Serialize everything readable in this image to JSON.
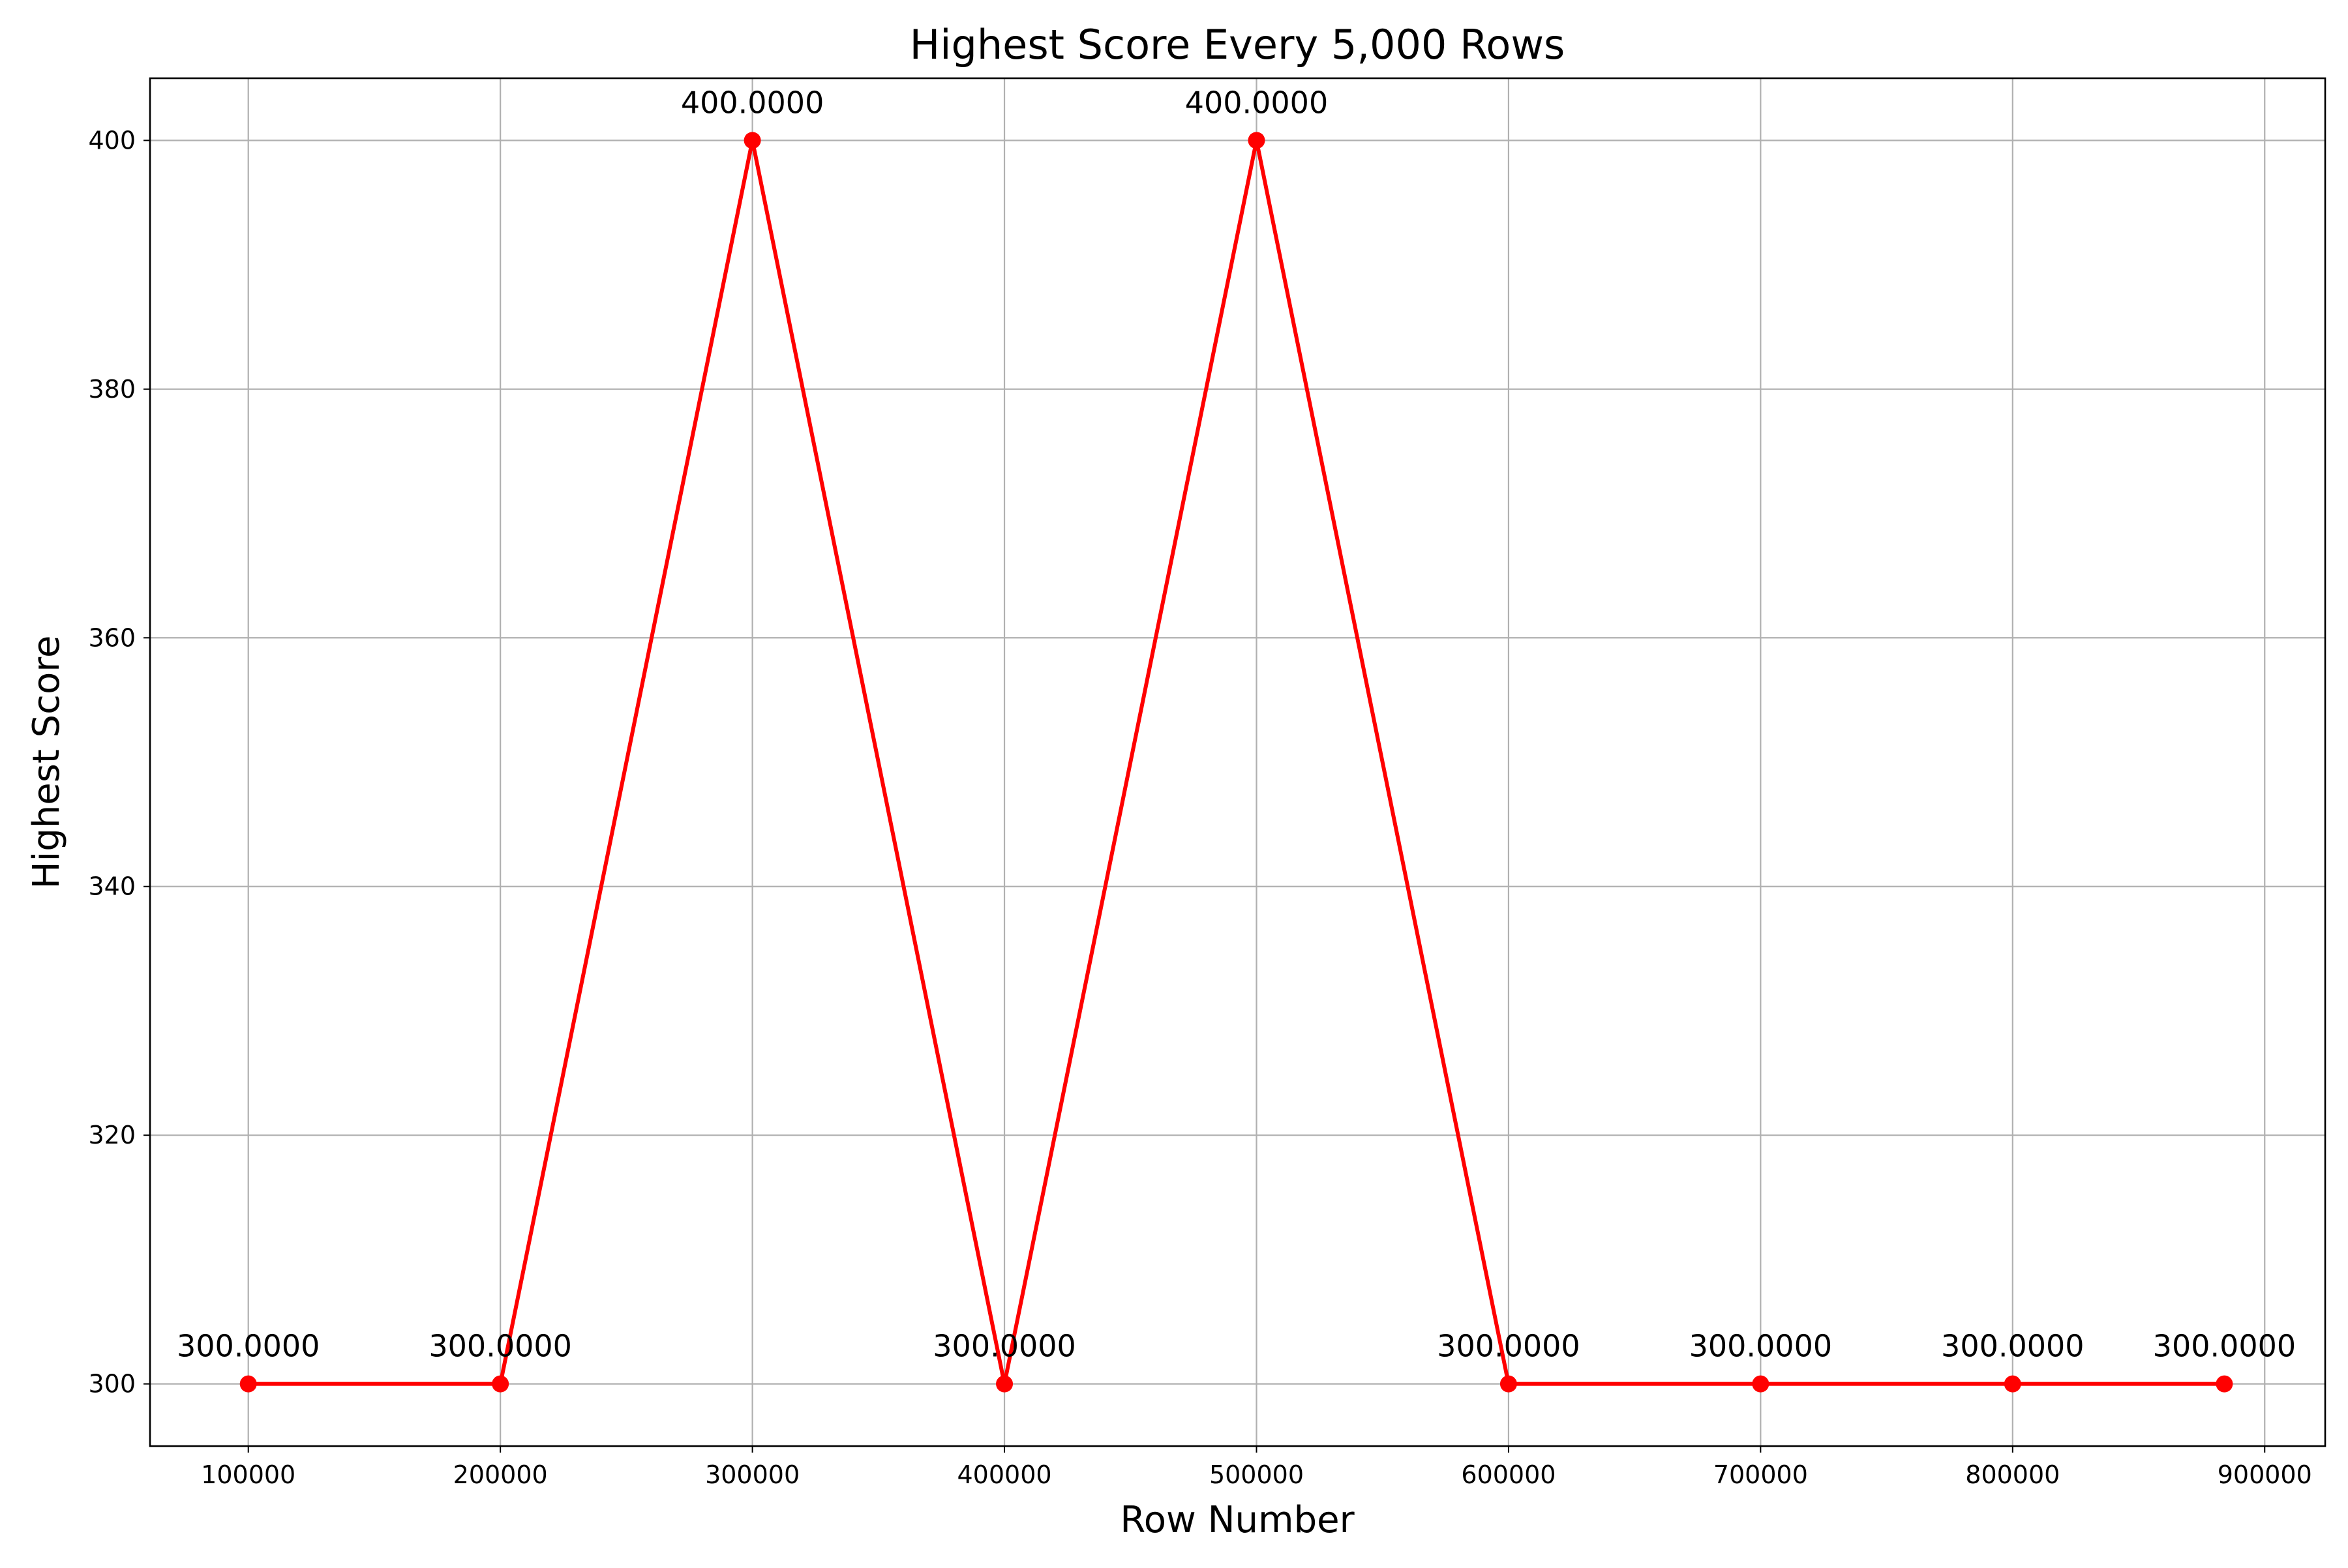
{
  "chart_data": {
    "type": "line",
    "title": "Highest Score Every 5,000 Rows",
    "xlabel": "Row Number",
    "ylabel": "Highest Score",
    "xlim": [
      61000,
      924000
    ],
    "ylim": [
      295,
      405
    ],
    "xticks": [
      100000,
      200000,
      300000,
      400000,
      500000,
      600000,
      700000,
      800000,
      900000
    ],
    "yticks": [
      300,
      320,
      340,
      360,
      380,
      400
    ],
    "grid": true,
    "series": [
      {
        "color": "#ff0000",
        "marker": "circle",
        "x": [
          100000,
          200000,
          300000,
          400000,
          500000,
          600000,
          700000,
          800000,
          884000
        ],
        "y": [
          300,
          300,
          400,
          300,
          400,
          300,
          300,
          300,
          300
        ],
        "labels": [
          "300.0000",
          "300.0000",
          "400.0000",
          "300.0000",
          "400.0000",
          "300.0000",
          "300.0000",
          "300.0000",
          "300.0000"
        ]
      }
    ]
  }
}
